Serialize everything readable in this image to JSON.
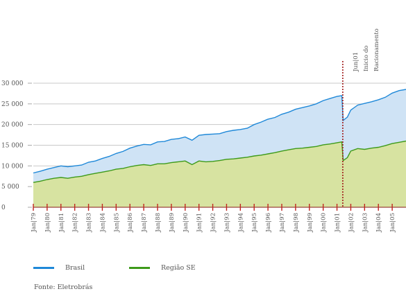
{
  "chart_data": {
    "type": "area",
    "title": "",
    "xlabel": "",
    "ylabel": "",
    "ylim": [
      0,
      30000
    ],
    "yticks": [
      {
        "value": 0,
        "label": "0"
      },
      {
        "value": 5000,
        "label": "5 000"
      },
      {
        "value": 10000,
        "label": "10 000"
      },
      {
        "value": 15000,
        "label": "15 000"
      },
      {
        "value": 20000,
        "label": "20 000"
      },
      {
        "value": 25000,
        "label": "25 000"
      },
      {
        "value": 30000,
        "label": "30 000"
      }
    ],
    "xlim": [
      1979.0,
      2006.0
    ],
    "xticks": [
      {
        "value": 1979,
        "label": "Jan|79"
      },
      {
        "value": 1980,
        "label": "Jan|80"
      },
      {
        "value": 1981,
        "label": "Jan|81"
      },
      {
        "value": 1982,
        "label": "Jan|82"
      },
      {
        "value": 1983,
        "label": "Jan|83"
      },
      {
        "value": 1984,
        "label": "Jan|84"
      },
      {
        "value": 1985,
        "label": "Jan|85"
      },
      {
        "value": 1986,
        "label": "Jan|86"
      },
      {
        "value": 1987,
        "label": "Jan|87"
      },
      {
        "value": 1988,
        "label": "Jan|88"
      },
      {
        "value": 1989,
        "label": "Jan|89"
      },
      {
        "value": 1990,
        "label": "Jan|90"
      },
      {
        "value": 1991,
        "label": "Jan|91"
      },
      {
        "value": 1992,
        "label": "Jan|92"
      },
      {
        "value": 1993,
        "label": "Jan|93"
      },
      {
        "value": 1994,
        "label": "Jan|94"
      },
      {
        "value": 1995,
        "label": "Jan|95"
      },
      {
        "value": 1996,
        "label": "Jan|96"
      },
      {
        "value": 1997,
        "label": "Jan|97"
      },
      {
        "value": 1998,
        "label": "Jan|98"
      },
      {
        "value": 1999,
        "label": "Jan|99"
      },
      {
        "value": 2000,
        "label": "Jan|00"
      },
      {
        "value": 2001,
        "label": "Jan|01"
      },
      {
        "value": 2002,
        "label": "Jan|02"
      },
      {
        "value": 2003,
        "label": "Jan|03"
      },
      {
        "value": 2004,
        "label": "Jan|04"
      },
      {
        "value": 2005,
        "label": "Jan|05"
      }
    ],
    "series": [
      {
        "name": "Brasil",
        "color": "#1e88d8",
        "fill": "#cfe3f5",
        "points": [
          [
            1979.0,
            8300
          ],
          [
            1979.5,
            8700
          ],
          [
            1980.0,
            9200
          ],
          [
            1980.5,
            9600
          ],
          [
            1981.0,
            10000
          ],
          [
            1981.5,
            9800
          ],
          [
            1982.0,
            10000
          ],
          [
            1982.5,
            10200
          ],
          [
            1983.0,
            10900
          ],
          [
            1983.5,
            11200
          ],
          [
            1984.0,
            11800
          ],
          [
            1984.5,
            12300
          ],
          [
            1985.0,
            13000
          ],
          [
            1985.5,
            13500
          ],
          [
            1986.0,
            14300
          ],
          [
            1986.5,
            14800
          ],
          [
            1987.0,
            15200
          ],
          [
            1987.5,
            15100
          ],
          [
            1988.0,
            15800
          ],
          [
            1988.5,
            15900
          ],
          [
            1989.0,
            16400
          ],
          [
            1989.5,
            16600
          ],
          [
            1990.0,
            17000
          ],
          [
            1990.5,
            16200
          ],
          [
            1991.0,
            17400
          ],
          [
            1991.5,
            17600
          ],
          [
            1992.0,
            17700
          ],
          [
            1992.5,
            17800
          ],
          [
            1993.0,
            18300
          ],
          [
            1993.5,
            18600
          ],
          [
            1994.0,
            18800
          ],
          [
            1994.5,
            19100
          ],
          [
            1995.0,
            20000
          ],
          [
            1995.5,
            20600
          ],
          [
            1996.0,
            21300
          ],
          [
            1996.5,
            21700
          ],
          [
            1997.0,
            22500
          ],
          [
            1997.5,
            23000
          ],
          [
            1998.0,
            23700
          ],
          [
            1998.5,
            24100
          ],
          [
            1999.0,
            24500
          ],
          [
            1999.5,
            25000
          ],
          [
            2000.0,
            25800
          ],
          [
            2000.5,
            26300
          ],
          [
            2001.0,
            26800
          ],
          [
            2001.35,
            27000
          ],
          [
            2001.45,
            21000
          ],
          [
            2001.75,
            21800
          ],
          [
            2002.0,
            23500
          ],
          [
            2002.5,
            24700
          ],
          [
            2003.0,
            25100
          ],
          [
            2003.5,
            25500
          ],
          [
            2004.0,
            26000
          ],
          [
            2004.5,
            26600
          ],
          [
            2005.0,
            27600
          ],
          [
            2005.5,
            28200
          ],
          [
            2006.0,
            28500
          ]
        ]
      },
      {
        "name": "Região SE",
        "color": "#3d9a1a",
        "fill": "#d7e3a1",
        "points": [
          [
            1979.0,
            6000
          ],
          [
            1979.5,
            6300
          ],
          [
            1980.0,
            6700
          ],
          [
            1980.5,
            7000
          ],
          [
            1981.0,
            7200
          ],
          [
            1981.5,
            7000
          ],
          [
            1982.0,
            7300
          ],
          [
            1982.5,
            7500
          ],
          [
            1983.0,
            7900
          ],
          [
            1983.5,
            8200
          ],
          [
            1984.0,
            8500
          ],
          [
            1984.5,
            8800
          ],
          [
            1985.0,
            9200
          ],
          [
            1985.5,
            9400
          ],
          [
            1986.0,
            9800
          ],
          [
            1986.5,
            10100
          ],
          [
            1987.0,
            10300
          ],
          [
            1987.5,
            10100
          ],
          [
            1988.0,
            10500
          ],
          [
            1988.5,
            10500
          ],
          [
            1989.0,
            10800
          ],
          [
            1989.5,
            11000
          ],
          [
            1990.0,
            11200
          ],
          [
            1990.5,
            10300
          ],
          [
            1991.0,
            11200
          ],
          [
            1991.5,
            11000
          ],
          [
            1992.0,
            11100
          ],
          [
            1992.5,
            11300
          ],
          [
            1993.0,
            11600
          ],
          [
            1993.5,
            11700
          ],
          [
            1994.0,
            11900
          ],
          [
            1994.5,
            12100
          ],
          [
            1995.0,
            12400
          ],
          [
            1995.5,
            12600
          ],
          [
            1996.0,
            12900
          ],
          [
            1996.5,
            13200
          ],
          [
            1997.0,
            13600
          ],
          [
            1997.5,
            13900
          ],
          [
            1998.0,
            14200
          ],
          [
            1998.5,
            14300
          ],
          [
            1999.0,
            14500
          ],
          [
            1999.5,
            14700
          ],
          [
            2000.0,
            15100
          ],
          [
            2000.5,
            15300
          ],
          [
            2001.0,
            15600
          ],
          [
            2001.35,
            15800
          ],
          [
            2001.45,
            11300
          ],
          [
            2001.75,
            12000
          ],
          [
            2002.0,
            13600
          ],
          [
            2002.5,
            14200
          ],
          [
            2003.0,
            14000
          ],
          [
            2003.5,
            14300
          ],
          [
            2004.0,
            14500
          ],
          [
            2004.5,
            14900
          ],
          [
            2005.0,
            15400
          ],
          [
            2005.5,
            15700
          ],
          [
            2006.0,
            16000
          ]
        ]
      }
    ],
    "annotations": [
      {
        "x": 2001.42,
        "lines": [
          "Jun|01",
          "Inicio do",
          "Racionamento"
        ],
        "color": "#a01818",
        "style": "dotted"
      }
    ],
    "grid": true,
    "legend_position": "bottom-left"
  },
  "legend": [
    {
      "label": "Brasil",
      "color": "#1e88d8"
    },
    {
      "label": "Região SE",
      "color": "#3d9a1a"
    }
  ],
  "source": "Fonte: Eletrobrás"
}
